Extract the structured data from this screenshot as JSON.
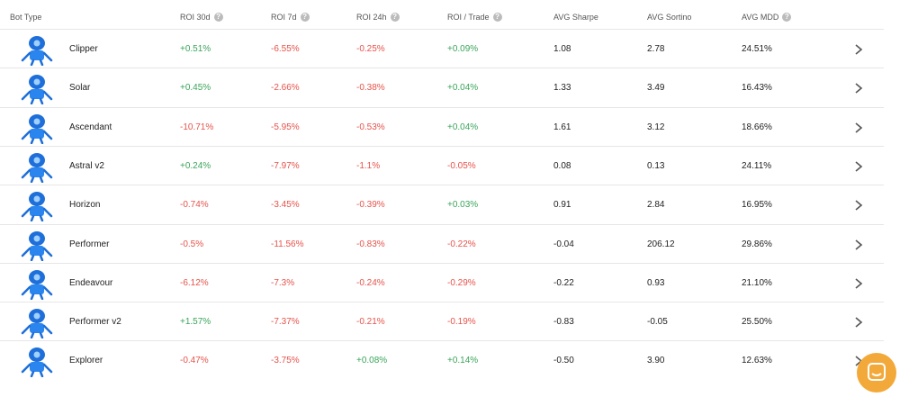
{
  "table": {
    "headers": [
      "Bot Type",
      "ROI 30d",
      "ROI 7d",
      "ROI 24h",
      "ROI / Trade",
      "AVG Sharpe",
      "AVG Sortino",
      "AVG MDD"
    ],
    "rows": [
      [
        "Clipper",
        "+0.51%",
        "-6.55%",
        "-0.25%",
        "+0.09%",
        "1.08",
        "2.78",
        "24.51%"
      ],
      [
        "Solar",
        "+0.45%",
        "-2.66%",
        "-0.38%",
        "+0.04%",
        "1.33",
        "3.49",
        "16.43%"
      ],
      [
        "Ascendant",
        "-10.71%",
        "-5.95%",
        "-0.53%",
        "+0.04%",
        "1.61",
        "3.12",
        "18.66%"
      ],
      [
        "Astral v2",
        "+0.24%",
        "-7.97%",
        "-1.1%",
        "-0.05%",
        "0.08",
        "0.13",
        "24.11%"
      ],
      [
        "Horizon",
        "-0.74%",
        "-3.45%",
        "-0.39%",
        "+0.03%",
        "0.91",
        "2.84",
        "16.95%"
      ],
      [
        "Performer",
        "-0.5%",
        "-11.56%",
        "-0.83%",
        "-0.22%",
        "-0.04",
        "206.12",
        "29.86%"
      ],
      [
        "Endeavour",
        "-6.12%",
        "-7.3%",
        "-0.24%",
        "-0.29%",
        "-0.22",
        "0.93",
        "21.10%"
      ],
      [
        "Performer v2",
        "+1.57%",
        "-7.37%",
        "-0.21%",
        "-0.19%",
        "-0.83",
        "-0.05",
        "25.50%"
      ],
      [
        "Explorer",
        "-0.47%",
        "-3.75%",
        "+0.08%",
        "+0.14%",
        "-0.50",
        "3.90",
        "12.63%"
      ]
    ]
  }
}
